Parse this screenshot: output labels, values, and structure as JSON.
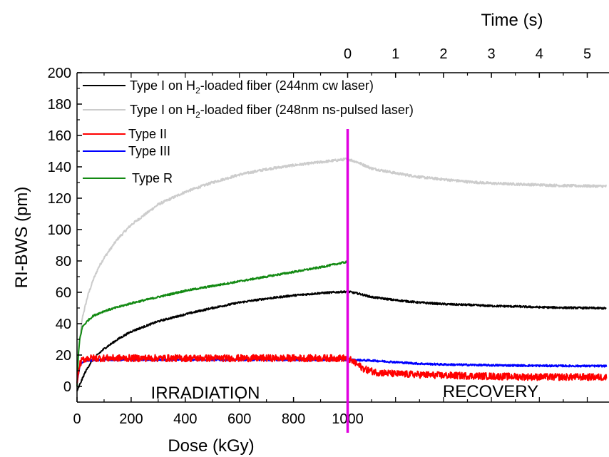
{
  "chart_data": {
    "type": "line",
    "title": "",
    "xlabel_bottom": "Dose (kGy)",
    "xlabel_top": "Time (s)",
    "ylabel": "RI-BWS (pm)",
    "ylim": [
      -10,
      200
    ],
    "yticks": [
      0,
      20,
      40,
      60,
      80,
      100,
      120,
      140,
      160,
      180,
      200
    ],
    "bottom_axis": {
      "min": 0,
      "max": 1000,
      "ticks": [
        0,
        200,
        400,
        600,
        800,
        1000
      ]
    },
    "top_axis": {
      "min": 0,
      "max": 5,
      "ticks": [
        0,
        1,
        2,
        3,
        4,
        5
      ]
    },
    "annotations": {
      "left": "IRRADIATION",
      "right": "RECOVERY"
    },
    "divider_color": "#e000e0",
    "grid": false,
    "legend_position": "top-left",
    "legend_sub": "2",
    "series": [
      {
        "name_pre": "Type I on H",
        "name_post": "-loaded fiber (244nm cw laser)",
        "color": "#000000",
        "noise": 0.6,
        "irradiation": [
          [
            0,
            -3
          ],
          [
            15,
            3
          ],
          [
            30,
            9
          ],
          [
            50,
            15
          ],
          [
            75,
            20
          ],
          [
            100,
            24
          ],
          [
            150,
            30
          ],
          [
            200,
            35
          ],
          [
            300,
            41.5
          ],
          [
            400,
            46
          ],
          [
            500,
            50
          ],
          [
            600,
            53.5
          ],
          [
            700,
            56
          ],
          [
            800,
            58
          ],
          [
            900,
            59.5
          ],
          [
            1000,
            60.5
          ]
        ],
        "recovery": [
          [
            0,
            60.5
          ],
          [
            0.25,
            59
          ],
          [
            0.5,
            57
          ],
          [
            1,
            55
          ],
          [
            1.5,
            53.5
          ],
          [
            2,
            52.5
          ],
          [
            2.5,
            52
          ],
          [
            3,
            51.3
          ],
          [
            3.5,
            51
          ],
          [
            4,
            50.5
          ],
          [
            4.5,
            50.2
          ],
          [
            5,
            50
          ],
          [
            5.4,
            49.8
          ]
        ]
      },
      {
        "name_pre": "Type I on H",
        "name_post": "-loaded fiber (248nm ns-pulsed laser)",
        "color": "#cccccc",
        "noise": 0.8,
        "irradiation": [
          [
            0,
            0
          ],
          [
            5,
            20
          ],
          [
            10,
            30
          ],
          [
            20,
            44
          ],
          [
            40,
            58
          ],
          [
            60,
            68
          ],
          [
            80,
            76
          ],
          [
            100,
            82
          ],
          [
            150,
            94
          ],
          [
            200,
            103
          ],
          [
            300,
            116
          ],
          [
            400,
            124
          ],
          [
            500,
            130
          ],
          [
            600,
            135
          ],
          [
            700,
            138.5
          ],
          [
            800,
            141
          ],
          [
            900,
            143
          ],
          [
            1000,
            145
          ]
        ],
        "recovery": [
          [
            0,
            145
          ],
          [
            0.2,
            143
          ],
          [
            0.5,
            139
          ],
          [
            1,
            136
          ],
          [
            1.5,
            133.5
          ],
          [
            2,
            132
          ],
          [
            2.5,
            130.5
          ],
          [
            3,
            129.5
          ],
          [
            3.5,
            129
          ],
          [
            4,
            128.5
          ],
          [
            4.5,
            128
          ],
          [
            5,
            127.8
          ],
          [
            5.4,
            127.6
          ]
        ]
      },
      {
        "name_pre": "Type II",
        "name_post": "",
        "color": "#ff0000",
        "noise": 2.2,
        "irradiation": [
          [
            0,
            2
          ],
          [
            10,
            14
          ],
          [
            20,
            17
          ],
          [
            40,
            18
          ],
          [
            100,
            18
          ],
          [
            400,
            18
          ],
          [
            700,
            18
          ],
          [
            1000,
            18
          ]
        ],
        "recovery": [
          [
            0,
            18
          ],
          [
            0.15,
            15
          ],
          [
            0.35,
            11
          ],
          [
            0.6,
            9
          ],
          [
            1,
            8
          ],
          [
            1.5,
            7.5
          ],
          [
            2,
            7
          ],
          [
            3,
            6.5
          ],
          [
            4,
            6
          ],
          [
            5,
            6
          ],
          [
            5.4,
            5.8
          ]
        ]
      },
      {
        "name_pre": "Type III",
        "name_post": "",
        "color": "#0000ff",
        "noise": 0.6,
        "irradiation": [
          [
            0,
            2
          ],
          [
            10,
            13
          ],
          [
            20,
            15.5
          ],
          [
            40,
            16.5
          ],
          [
            100,
            17
          ],
          [
            1000,
            17
          ]
        ],
        "recovery": [
          [
            0,
            17
          ],
          [
            0.5,
            16.5
          ],
          [
            1,
            15.5
          ],
          [
            1.5,
            14.5
          ],
          [
            2,
            14
          ],
          [
            3,
            13.5
          ],
          [
            4,
            13.2
          ],
          [
            5,
            13
          ],
          [
            5.4,
            13
          ]
        ]
      },
      {
        "name_pre": "Type R",
        "name_post": "",
        "color": "#138a13",
        "noise": 0.6,
        "irradiation": [
          [
            0,
            0
          ],
          [
            5,
            20
          ],
          [
            10,
            30
          ],
          [
            20,
            38
          ],
          [
            40,
            42
          ],
          [
            60,
            45
          ],
          [
            100,
            48
          ],
          [
            200,
            53
          ],
          [
            300,
            57
          ],
          [
            400,
            61
          ],
          [
            500,
            64
          ],
          [
            600,
            67
          ],
          [
            700,
            70
          ],
          [
            800,
            73
          ],
          [
            900,
            76
          ],
          [
            1000,
            79.5
          ]
        ],
        "recovery": []
      }
    ]
  }
}
